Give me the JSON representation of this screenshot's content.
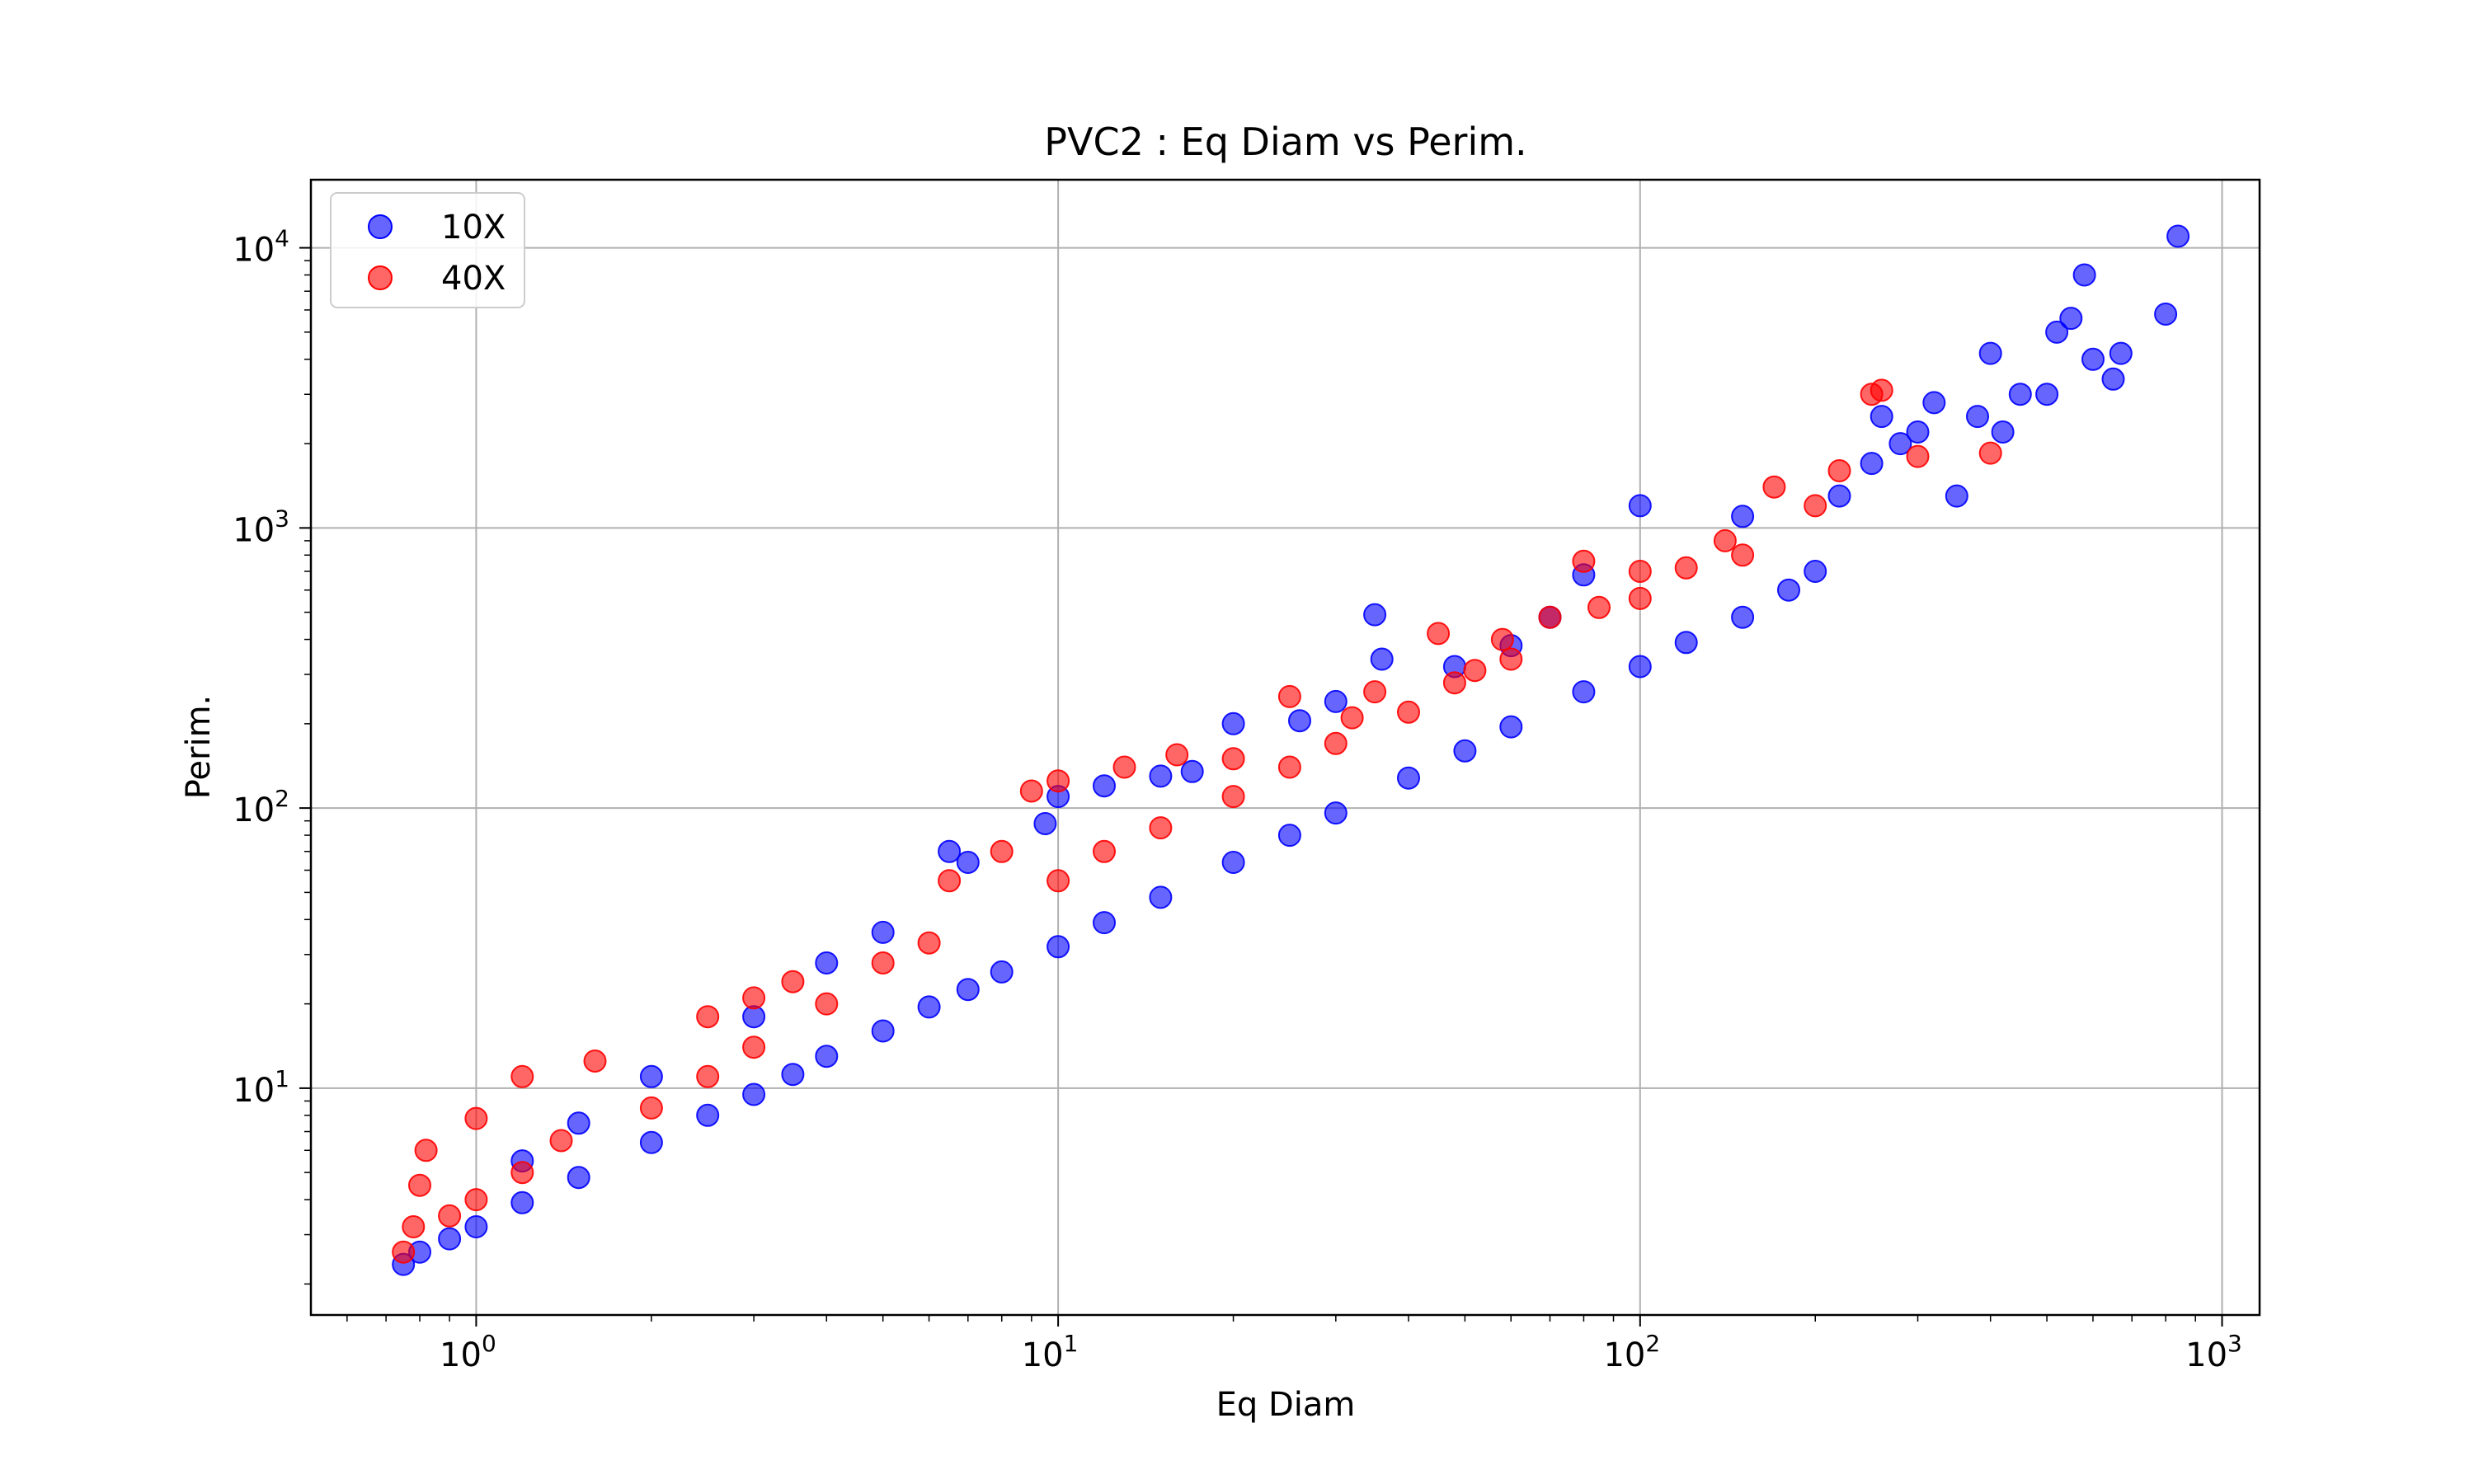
{
  "chart_data": {
    "type": "scatter",
    "title": "PVC2 : Eq Diam vs Perim.",
    "xlabel": "Eq Diam",
    "ylabel": "Perim.",
    "x_scale": "log",
    "y_scale": "log",
    "xlim": [
      0.52,
      1160
    ],
    "ylim": [
      1.55,
      17500
    ],
    "grid": true,
    "legend_position": "upper-left",
    "x_ticks": [
      {
        "base": "10",
        "exp": "0",
        "value": 1
      },
      {
        "base": "10",
        "exp": "1",
        "value": 10
      },
      {
        "base": "10",
        "exp": "2",
        "value": 100
      },
      {
        "base": "10",
        "exp": "3",
        "value": 1000
      }
    ],
    "y_ticks": [
      {
        "base": "10",
        "exp": "1",
        "value": 10
      },
      {
        "base": "10",
        "exp": "2",
        "value": 100
      },
      {
        "base": "10",
        "exp": "3",
        "value": 1000
      },
      {
        "base": "10",
        "exp": "4",
        "value": 10000
      }
    ],
    "series": [
      {
        "name": "10X",
        "color": "#0000ff",
        "alpha": 0.6,
        "points": [
          [
            0.75,
            2.35
          ],
          [
            0.8,
            2.6
          ],
          [
            0.9,
            2.9
          ],
          [
            1.0,
            3.2
          ],
          [
            1.2,
            3.9
          ],
          [
            1.5,
            4.8
          ],
          [
            2.0,
            6.4
          ],
          [
            2.5,
            8.0
          ],
          [
            3.0,
            9.5
          ],
          [
            3.5,
            11.2
          ],
          [
            4.0,
            13.0
          ],
          [
            5.0,
            16.0
          ],
          [
            6.0,
            19.5
          ],
          [
            7.0,
            22.5
          ],
          [
            8.0,
            26.0
          ],
          [
            10.0,
            32.0
          ],
          [
            12.0,
            39.0
          ],
          [
            15.0,
            48.0
          ],
          [
            20.0,
            64.0
          ],
          [
            25.0,
            80.0
          ],
          [
            30.0,
            96.0
          ],
          [
            40.0,
            128.0
          ],
          [
            50.0,
            160.0
          ],
          [
            60.0,
            195.0
          ],
          [
            80.0,
            260.0
          ],
          [
            100.0,
            320.0
          ],
          [
            120.0,
            390.0
          ],
          [
            150.0,
            480.0
          ],
          [
            180.0,
            600.0
          ],
          [
            200.0,
            700.0
          ],
          [
            220.0,
            1300.0
          ],
          [
            250.0,
            1700.0
          ],
          [
            260.0,
            2500.0
          ],
          [
            280.0,
            2000.0
          ],
          [
            300.0,
            2200.0
          ],
          [
            320.0,
            2800.0
          ],
          [
            350.0,
            1300.0
          ],
          [
            380.0,
            2500.0
          ],
          [
            400.0,
            4200.0
          ],
          [
            420.0,
            2200.0
          ],
          [
            450.0,
            3000.0
          ],
          [
            500.0,
            3000.0
          ],
          [
            520.0,
            5000.0
          ],
          [
            550.0,
            5600.0
          ],
          [
            580.0,
            8000.0
          ],
          [
            600.0,
            4000.0
          ],
          [
            650.0,
            3400.0
          ],
          [
            670.0,
            4200.0
          ],
          [
            800.0,
            5800.0
          ],
          [
            840.0,
            11000.0
          ],
          [
            1.2,
            5.5
          ],
          [
            1.5,
            7.5
          ],
          [
            2.0,
            11.0
          ],
          [
            3.0,
            18.0
          ],
          [
            4.0,
            28.0
          ],
          [
            5.0,
            36.0
          ],
          [
            6.5,
            70.0
          ],
          [
            7.0,
            64.0
          ],
          [
            9.5,
            88.0
          ],
          [
            10.0,
            110.0
          ],
          [
            12.0,
            120.0
          ],
          [
            15.0,
            130.0
          ],
          [
            17.0,
            135.0
          ],
          [
            20.0,
            200.0
          ],
          [
            26.0,
            205.0
          ],
          [
            30.0,
            240.0
          ],
          [
            35.0,
            490.0
          ],
          [
            36.0,
            340.0
          ],
          [
            48.0,
            320.0
          ],
          [
            60.0,
            380.0
          ],
          [
            70.0,
            480.0
          ],
          [
            80.0,
            680.0
          ],
          [
            100.0,
            1200.0
          ],
          [
            150.0,
            1100.0
          ]
        ]
      },
      {
        "name": "40X",
        "color": "#ff0000",
        "alpha": 0.6,
        "points": [
          [
            0.75,
            2.6
          ],
          [
            0.78,
            3.2
          ],
          [
            0.8,
            4.5
          ],
          [
            0.82,
            6.0
          ],
          [
            0.9,
            3.5
          ],
          [
            1.0,
            4.0
          ],
          [
            1.0,
            7.8
          ],
          [
            1.2,
            5.0
          ],
          [
            1.2,
            11.0
          ],
          [
            1.4,
            6.5
          ],
          [
            1.6,
            12.5
          ],
          [
            2.0,
            8.5
          ],
          [
            2.5,
            11.0
          ],
          [
            2.5,
            18.0
          ],
          [
            3.0,
            14.0
          ],
          [
            3.0,
            21.0
          ],
          [
            3.5,
            24.0
          ],
          [
            4.0,
            20.0
          ],
          [
            5.0,
            28.0
          ],
          [
            6.0,
            33.0
          ],
          [
            6.5,
            55.0
          ],
          [
            8.0,
            70.0
          ],
          [
            9.0,
            115.0
          ],
          [
            10.0,
            55.0
          ],
          [
            10.0,
            125.0
          ],
          [
            12.0,
            70.0
          ],
          [
            13.0,
            140.0
          ],
          [
            15.0,
            85.0
          ],
          [
            16.0,
            155.0
          ],
          [
            20.0,
            110.0
          ],
          [
            20.0,
            150.0
          ],
          [
            25.0,
            140.0
          ],
          [
            25.0,
            250.0
          ],
          [
            30.0,
            170.0
          ],
          [
            32.0,
            210.0
          ],
          [
            35.0,
            260.0
          ],
          [
            40.0,
            220.0
          ],
          [
            45.0,
            420.0
          ],
          [
            48.0,
            280.0
          ],
          [
            52.0,
            310.0
          ],
          [
            58.0,
            400.0
          ],
          [
            60.0,
            340.0
          ],
          [
            70.0,
            480.0
          ],
          [
            80.0,
            760.0
          ],
          [
            85.0,
            520.0
          ],
          [
            100.0,
            560.0
          ],
          [
            100.0,
            700.0
          ],
          [
            120.0,
            720.0
          ],
          [
            140.0,
            900.0
          ],
          [
            150.0,
            800.0
          ],
          [
            170.0,
            1400.0
          ],
          [
            200.0,
            1200.0
          ],
          [
            220.0,
            1600.0
          ],
          [
            250.0,
            3000.0
          ],
          [
            260.0,
            3100.0
          ],
          [
            300.0,
            1800.0
          ],
          [
            400.0,
            1850.0
          ]
        ]
      }
    ]
  }
}
